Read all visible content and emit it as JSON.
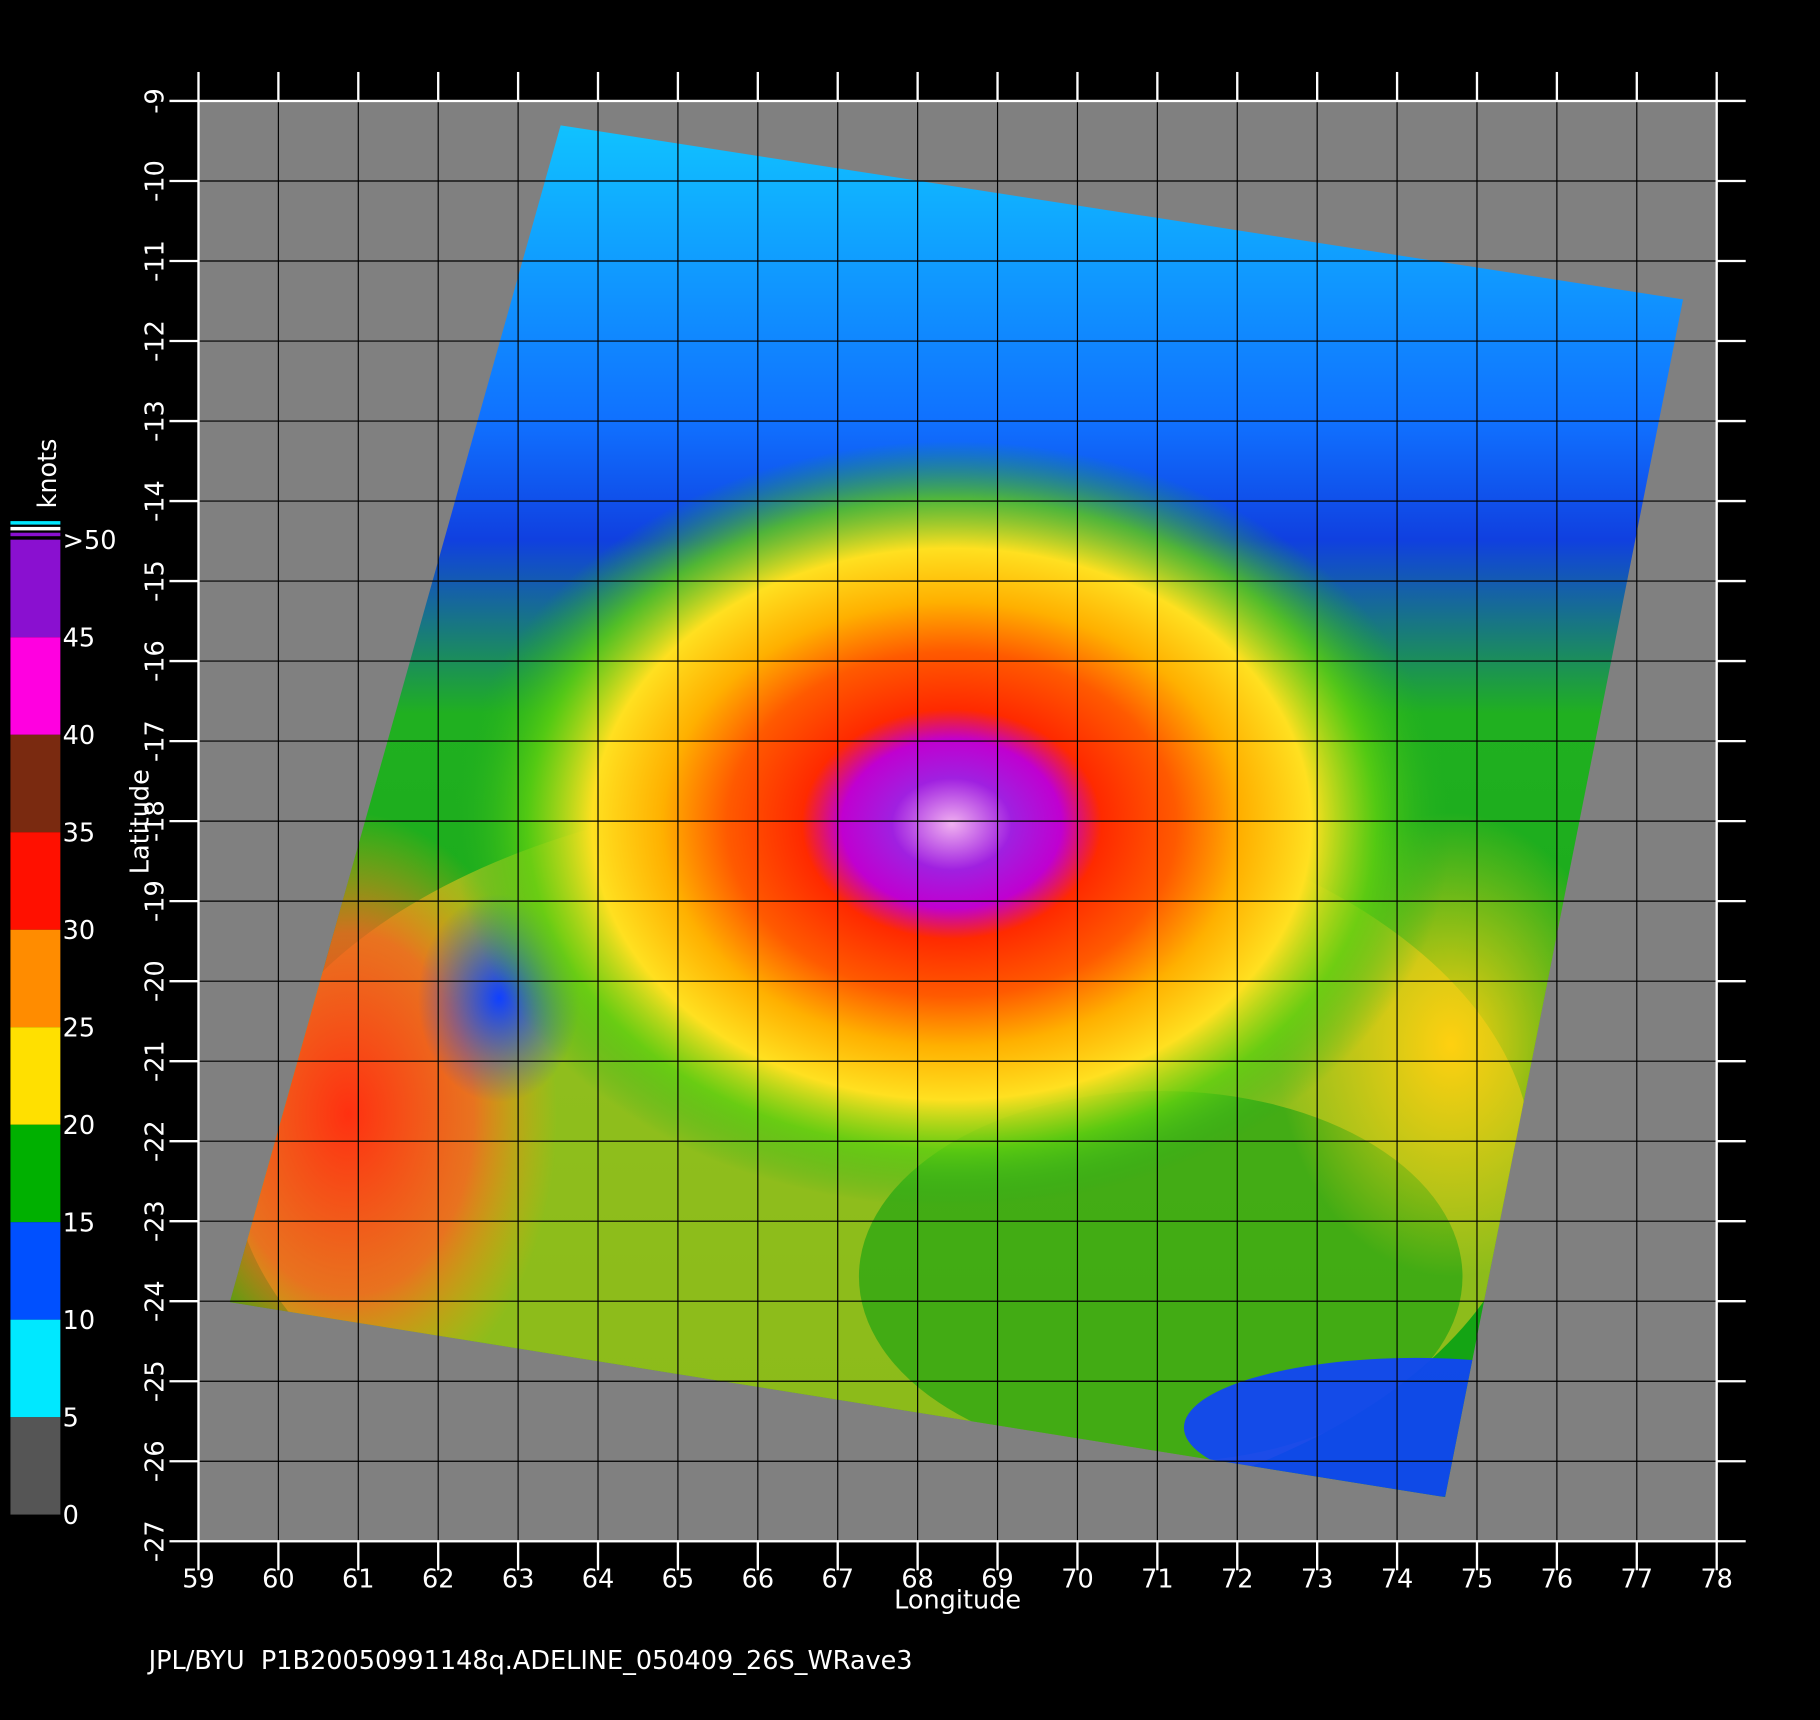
{
  "chart_data": {
    "type": "map",
    "xlabel": "Longitude",
    "ylabel": "Latitude",
    "xlim": [
      59,
      78
    ],
    "ylim": [
      -27,
      -9
    ],
    "xticks": [
      59,
      60,
      61,
      62,
      63,
      64,
      65,
      66,
      67,
      68,
      69,
      70,
      71,
      72,
      73,
      74,
      75,
      76,
      77,
      78
    ],
    "yticks": [
      -9,
      -10,
      -11,
      -12,
      -13,
      -14,
      -15,
      -16,
      -17,
      -18,
      -19,
      -20,
      -21,
      -22,
      -23,
      -24,
      -25,
      -26,
      -27
    ],
    "grid": true,
    "colorbar": {
      "label": "knots",
      "lim": [
        0,
        50
      ],
      "ticks": [
        0,
        5,
        10,
        15,
        20,
        25,
        30,
        35,
        40,
        45,
        {
          "value": 50,
          "label": ">50"
        }
      ],
      "colors": [
        "#555555",
        "#00e8ff",
        "#0050ff",
        "#00b000",
        "#ffe000",
        "#ff8c00",
        "#ff1000",
        "#7a2a10",
        "#ff00e0",
        "#8a10d0"
      ]
    },
    "footer": "JPL/BYU  P1B20050991148q.ADELINE_050409_26S_WRave3"
  }
}
